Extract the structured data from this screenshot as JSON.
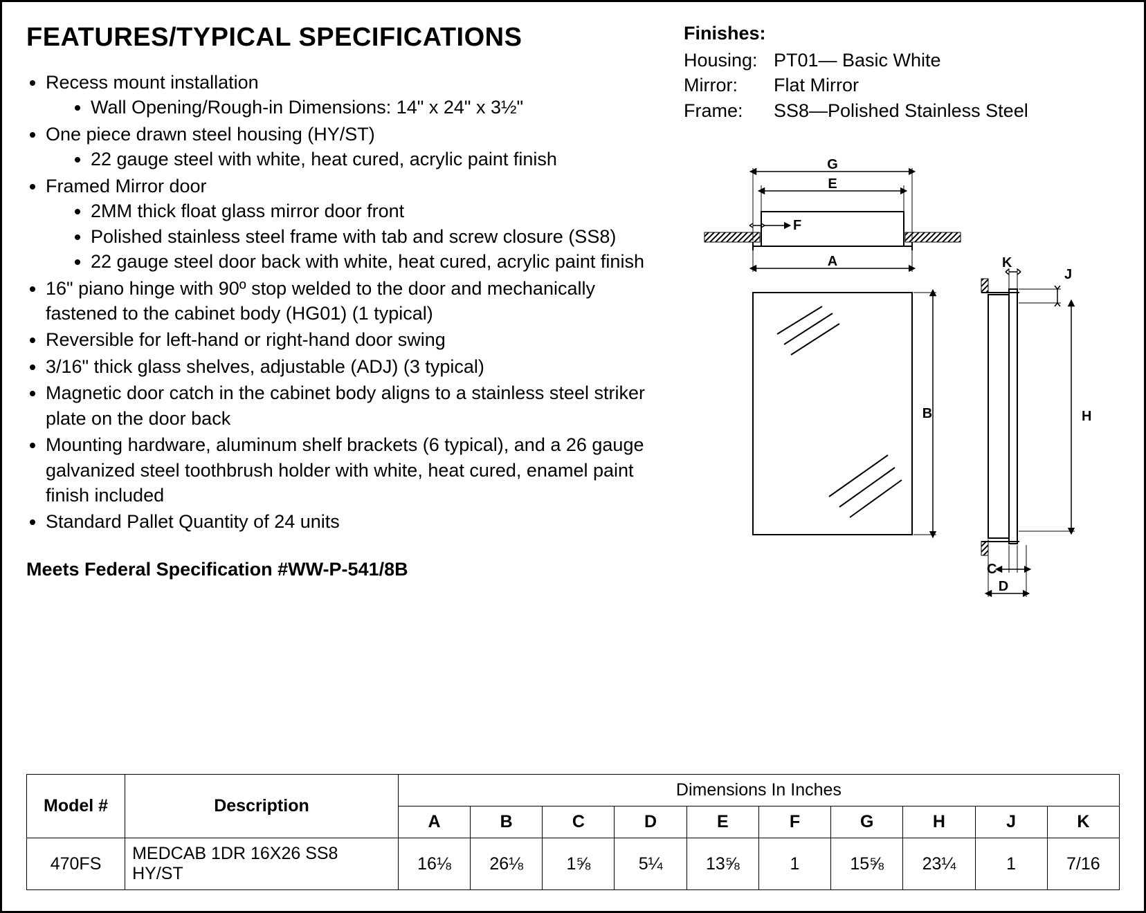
{
  "title": "FEATURES/TYPICAL SPECIFICATIONS",
  "finishes": {
    "title": "Finishes:",
    "rows": [
      {
        "label": "Housing:",
        "value": "PT01— Basic White"
      },
      {
        "label": "Mirror:",
        "value": "Flat Mirror"
      },
      {
        "label": "Frame:",
        "value": "SS8—Polished Stainless Steel"
      }
    ]
  },
  "features": [
    {
      "text": "Recess mount installation",
      "sub": [
        "Wall Opening/Rough-in Dimensions: 14\" x 24\" x 3½\""
      ]
    },
    {
      "text": "One piece drawn steel housing (HY/ST)",
      "sub": [
        "22 gauge steel with white, heat cured, acrylic paint finish"
      ]
    },
    {
      "text": "Framed Mirror door",
      "sub": [
        "2MM thick float glass mirror door front",
        "Polished stainless steel frame with tab and screw closure (SS8)",
        "22 gauge steel door back with white, heat cured, acrylic paint finish"
      ]
    },
    {
      "text": "16\" piano hinge with 90º stop welded to the door and mechanically fastened to the cabinet body (HG01) (1 typical)"
    },
    {
      "text": "Reversible for left-hand or right-hand door swing"
    },
    {
      "text": "3/16\" thick glass shelves, adjustable (ADJ) (3 typical)"
    },
    {
      "text": "Magnetic door catch in the cabinet body aligns to a stainless steel striker plate on the door back"
    },
    {
      "text": "Mounting hardware, aluminum shelf brackets (6 typical), and a 26 gauge galvanized steel toothbrush holder with white, heat cured, enamel paint finish included"
    },
    {
      "text": "Standard Pallet Quantity of 24 units"
    }
  ],
  "federal": "Meets Federal Specification #WW-P-541/8B",
  "diagram": {
    "labels": [
      "A",
      "B",
      "C",
      "D",
      "E",
      "F",
      "G",
      "H",
      "J",
      "K"
    ],
    "stroke": "#000000",
    "stroke_width": 2,
    "hatch_width": 8
  },
  "table": {
    "dims_header": "Dimensions In Inches",
    "columns": [
      "Model #",
      "Description",
      "A",
      "B",
      "C",
      "D",
      "E",
      "F",
      "G",
      "H",
      "J",
      "K"
    ],
    "col_widths_pct": [
      9,
      25,
      6.6,
      6.6,
      6.6,
      6.6,
      6.6,
      6.6,
      6.6,
      6.6,
      6.6,
      6.6
    ],
    "row": {
      "model": "470FS",
      "description": "MEDCAB 1DR 16X26 SS8 HY/ST",
      "values": [
        "16⅛",
        "26⅛",
        "1⅝",
        "5¼",
        "13⅝",
        "1",
        "15⅝",
        "23¼",
        "1",
        "7/16"
      ]
    }
  },
  "colors": {
    "text": "#000000",
    "background": "#ffffff",
    "border": "#000000"
  },
  "typography": {
    "title_fontsize": 38,
    "body_fontsize": 27,
    "table_fontsize": 25,
    "font_family": "Arial"
  }
}
